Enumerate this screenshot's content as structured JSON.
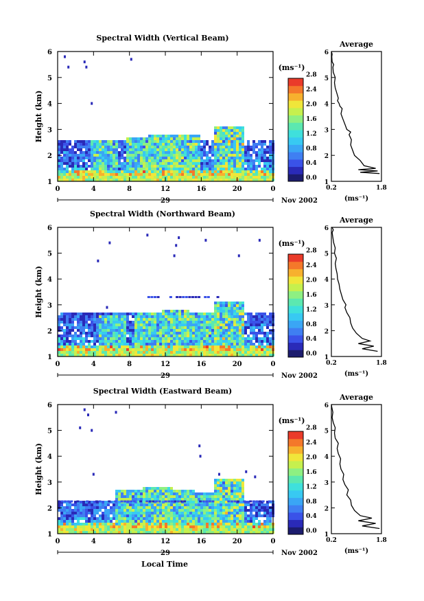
{
  "figure": {
    "xlabel": "Local Time",
    "date_label": "Nov 2002",
    "day_label": "29"
  },
  "chart_data": [
    {
      "type": "heatmap",
      "title": "Spectral Width (Vertical Beam)",
      "ylabel": "Height (km)",
      "xlim": [
        0,
        24
      ],
      "ylim": [
        1,
        6
      ],
      "xticks": [
        "0",
        "4",
        "8",
        "12",
        "16",
        "20",
        "0"
      ],
      "yticks": [
        "1",
        "2",
        "3",
        "4",
        "5",
        "6"
      ],
      "colorbar": {
        "unit": "(ms⁻¹)",
        "ticks": [
          "0.0",
          "0.4",
          "0.8",
          "1.2",
          "1.6",
          "2.0",
          "2.4",
          "2.8"
        ],
        "range": [
          0,
          3.0
        ]
      },
      "profile": {
        "title": "Average",
        "xlabel": "(ms⁻¹)",
        "xlim": [
          0.2,
          1.5
        ],
        "xticks": [
          "0.2",
          "1.8"
        ],
        "yticks": [
          "1",
          "2",
          "3",
          "4",
          "5",
          "6"
        ],
        "x": [
          1.45,
          0.95,
          1.4,
          0.9,
          1.35,
          1.05,
          0.95,
          0.8,
          0.75,
          0.7,
          0.72,
          0.66,
          0.7,
          0.6,
          0.55,
          0.5,
          0.45,
          0.48,
          0.42,
          0.4,
          0.36,
          0.38,
          0.34,
          0.3,
          0.28,
          0.3,
          0.25,
          0.24,
          0.26,
          0.22,
          0.21,
          0.22,
          0.2
        ],
        "y": [
          1.3,
          1.35,
          1.4,
          1.45,
          1.5,
          1.6,
          1.8,
          2.0,
          2.2,
          2.4,
          2.6,
          2.8,
          2.9,
          3.0,
          3.2,
          3.4,
          3.6,
          3.8,
          3.9,
          4.0,
          4.1,
          4.2,
          4.4,
          4.6,
          4.8,
          5.0,
          5.2,
          5.4,
          5.5,
          5.6,
          5.8,
          5.9,
          6.0
        ]
      },
      "bands": [
        {
          "y0": 1.1,
          "y1": 1.8,
          "t0": 0,
          "t1": 24,
          "level": 0.35
        },
        {
          "y0": 1.8,
          "y1": 2.25,
          "t0": 0,
          "t1": 24,
          "level": 0.22
        },
        {
          "y0": 2.25,
          "y1": 2.6,
          "t0": 0,
          "t1": 24,
          "level": 0.12
        }
      ],
      "plumes": [
        [
          5,
          0.8
        ],
        [
          9,
          0.9
        ],
        [
          11.5,
          1.0
        ],
        [
          14,
          1.0
        ],
        [
          19,
          1.2
        ]
      ],
      "scatter": [
        [
          0.8,
          5.8
        ],
        [
          3.0,
          5.6
        ],
        [
          3.2,
          5.4
        ],
        [
          8.2,
          5.7
        ],
        [
          3.8,
          4.0
        ],
        [
          1.2,
          5.4
        ]
      ],
      "line_layer": null
    },
    {
      "type": "heatmap",
      "title": "Spectral Width (Northward Beam)",
      "ylabel": "Height (km)",
      "xlim": [
        0,
        24
      ],
      "ylim": [
        1,
        6
      ],
      "xticks": [
        "0",
        "4",
        "8",
        "12",
        "16",
        "20",
        "0"
      ],
      "yticks": [
        "1",
        "2",
        "3",
        "4",
        "5",
        "6"
      ],
      "colorbar": {
        "unit": "(ms⁻¹)",
        "ticks": [
          "0.0",
          "0.4",
          "0.8",
          "1.2",
          "1.6",
          "2.0",
          "2.4",
          "2.8"
        ],
        "range": [
          0,
          3.0
        ]
      },
      "profile": {
        "title": "Average",
        "xlabel": "(ms⁻¹)",
        "xlim": [
          0.2,
          1.5
        ],
        "xticks": [
          "0.2",
          "1.8"
        ],
        "yticks": [
          "1",
          "2",
          "3",
          "4",
          "5",
          "6"
        ],
        "x": [
          1.4,
          1.0,
          1.3,
          0.9,
          1.2,
          1.0,
          0.85,
          0.75,
          0.7,
          0.68,
          0.6,
          0.55,
          0.58,
          0.5,
          0.46,
          0.42,
          0.4,
          0.36,
          0.35,
          0.32,
          0.3,
          0.33,
          0.28,
          0.3,
          0.26,
          0.24,
          0.22,
          0.25,
          0.22
        ],
        "y": [
          1.2,
          1.3,
          1.4,
          1.5,
          1.6,
          1.7,
          1.9,
          2.1,
          2.3,
          2.5,
          2.7,
          2.9,
          3.0,
          3.2,
          3.4,
          3.6,
          3.8,
          4.0,
          4.2,
          4.4,
          4.6,
          4.8,
          5.0,
          5.2,
          5.4,
          5.6,
          5.8,
          5.9,
          6.0
        ]
      },
      "bands": [
        {
          "y0": 1.1,
          "y1": 1.8,
          "t0": 0,
          "t1": 24,
          "level": 0.35
        },
        {
          "y0": 1.8,
          "y1": 2.3,
          "t0": 0,
          "t1": 24,
          "level": 0.2
        },
        {
          "y0": 2.3,
          "y1": 2.8,
          "t0": 0,
          "t1": 24,
          "level": 0.1
        }
      ],
      "plumes": [
        [
          6,
          0.8
        ],
        [
          10,
          0.9
        ],
        [
          13,
          1.0
        ],
        [
          16,
          0.9
        ],
        [
          19,
          1.2
        ]
      ],
      "scatter": [
        [
          5.8,
          5.4
        ],
        [
          10.0,
          5.7
        ],
        [
          13.5,
          5.6
        ],
        [
          13.2,
          5.3
        ],
        [
          16.5,
          5.5
        ],
        [
          22.5,
          5.5
        ],
        [
          20.2,
          4.9
        ],
        [
          13.0,
          4.9
        ],
        [
          4.5,
          4.7
        ],
        [
          5.5,
          2.9
        ]
      ],
      "line_layer": {
        "y": 3.3,
        "t0": 10,
        "t1": 18
      }
    },
    {
      "type": "heatmap",
      "title": "Spectral Width (Eastward Beam)",
      "ylabel": "Height (km)",
      "xlim": [
        0,
        24
      ],
      "ylim": [
        1,
        6
      ],
      "xticks": [
        "0",
        "4",
        "8",
        "12",
        "16",
        "20",
        "0"
      ],
      "yticks": [
        "1",
        "2",
        "3",
        "4",
        "5",
        "6"
      ],
      "colorbar": {
        "unit": "(ms⁻¹)",
        "ticks": [
          "0.0",
          "0.4",
          "0.8",
          "1.2",
          "1.6",
          "2.0",
          "2.4",
          "2.8"
        ],
        "range": [
          0,
          3.0
        ]
      },
      "profile": {
        "title": "Average",
        "xlabel": "(ms⁻¹)",
        "xlim": [
          0.2,
          1.5
        ],
        "xticks": [
          "0.2",
          "1.8"
        ],
        "yticks": [
          "1",
          "2",
          "3",
          "4",
          "5",
          "6"
        ],
        "x": [
          1.45,
          1.0,
          1.35,
          0.9,
          1.25,
          0.95,
          0.8,
          0.72,
          0.7,
          0.6,
          0.64,
          0.55,
          0.5,
          0.52,
          0.45,
          0.42,
          0.44,
          0.38,
          0.35,
          0.38,
          0.3,
          0.28,
          0.3,
          0.25,
          0.22,
          0.24,
          0.21,
          0.2
        ],
        "y": [
          1.2,
          1.3,
          1.4,
          1.5,
          1.6,
          1.7,
          1.9,
          2.1,
          2.3,
          2.5,
          2.7,
          2.9,
          3.1,
          3.3,
          3.5,
          3.7,
          3.9,
          4.1,
          4.3,
          4.5,
          4.7,
          4.9,
          5.1,
          5.3,
          5.5,
          5.7,
          5.9,
          6.0
        ]
      },
      "bands": [
        {
          "y0": 1.1,
          "y1": 1.7,
          "t0": 0,
          "t1": 24,
          "level": 0.4
        },
        {
          "y0": 1.7,
          "y1": 2.3,
          "t0": 0,
          "t1": 24,
          "level": 0.18
        }
      ],
      "plumes": [
        [
          8,
          0.9
        ],
        [
          11,
          1.0
        ],
        [
          13.5,
          0.9
        ],
        [
          16,
          0.8
        ],
        [
          19,
          1.2
        ]
      ],
      "scatter": [
        [
          3.0,
          5.8
        ],
        [
          3.4,
          5.6
        ],
        [
          2.5,
          5.1
        ],
        [
          3.8,
          5.0
        ],
        [
          6.5,
          5.7
        ],
        [
          15.8,
          4.4
        ],
        [
          15.9,
          4.0
        ],
        [
          4.0,
          3.3
        ],
        [
          18.0,
          3.3
        ],
        [
          21.0,
          3.4
        ],
        [
          22.0,
          3.2
        ]
      ],
      "line_layer": {
        "y": 2.25,
        "t0": 0,
        "t1": 24
      }
    }
  ]
}
